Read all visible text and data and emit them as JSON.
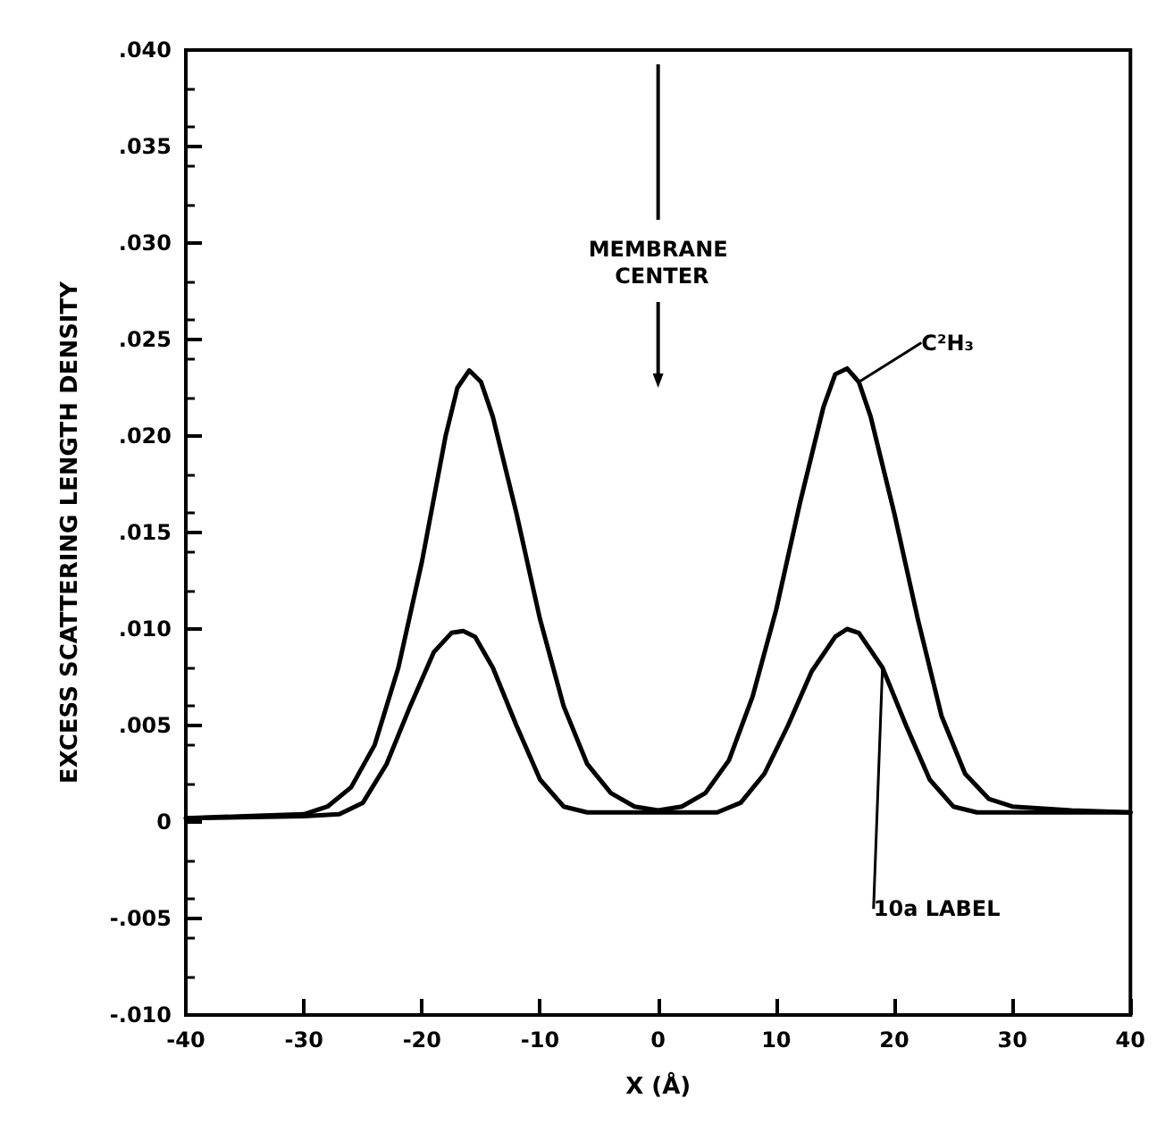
{
  "chart_data": {
    "type": "line",
    "xlabel": "X (Å)",
    "ylabel": "EXCESS SCATTERING LENGTH DENSITY",
    "xlim": [
      -40,
      40
    ],
    "xticks": [
      -40,
      -30,
      -20,
      -10,
      0,
      10,
      20,
      30,
      40
    ],
    "ylim": [
      -0.01,
      0.04
    ],
    "yticks": [
      {
        "value": -0.01,
        "label": "-.010"
      },
      {
        "value": -0.005,
        "label": "-.005"
      },
      {
        "value": 0,
        "label": "0"
      },
      {
        "value": 0.005,
        "label": ".005"
      },
      {
        "value": 0.01,
        "label": ".010"
      },
      {
        "value": 0.015,
        "label": ".015"
      },
      {
        "value": 0.02,
        "label": ".020"
      },
      {
        "value": 0.025,
        "label": ".025"
      },
      {
        "value": 0.03,
        "label": ".030"
      },
      {
        "value": 0.035,
        "label": ".035"
      },
      {
        "value": 0.04,
        "label": ".040"
      }
    ],
    "grid": false,
    "marker": "none",
    "line_style": "solid",
    "legend": false,
    "annotations": [
      "MEMBRANE CENTER"
    ],
    "series": [
      {
        "name": "C²H₃",
        "color": "#000000",
        "x": [
          -40,
          -35,
          -30,
          -28,
          -26,
          -24,
          -22,
          -20,
          -18,
          -17,
          -16,
          -15,
          -14,
          -12,
          -10,
          -8,
          -6,
          -4,
          -2,
          0,
          2,
          4,
          6,
          8,
          10,
          12,
          14,
          15,
          16,
          17,
          18,
          20,
          22,
          24,
          26,
          28,
          30,
          35,
          40
        ],
        "values": [
          0.0002,
          0.0003,
          0.0004,
          0.0008,
          0.0018,
          0.004,
          0.008,
          0.0135,
          0.02,
          0.0225,
          0.0234,
          0.0228,
          0.021,
          0.016,
          0.0105,
          0.006,
          0.003,
          0.0015,
          0.0008,
          0.0006,
          0.0008,
          0.0015,
          0.0032,
          0.0065,
          0.011,
          0.0165,
          0.0215,
          0.0232,
          0.0235,
          0.0228,
          0.021,
          0.016,
          0.0105,
          0.0055,
          0.0025,
          0.0012,
          0.0008,
          0.0006,
          0.0005
        ]
      },
      {
        "name": "10a LABEL",
        "color": "#000000",
        "x": [
          -40,
          -30,
          -27,
          -25,
          -23,
          -21,
          -19,
          -17.5,
          -16.5,
          -15.5,
          -14,
          -12,
          -10,
          -8,
          -6,
          0,
          5,
          7,
          9,
          11,
          13,
          15,
          16,
          17,
          19,
          21,
          23,
          25,
          27,
          40
        ],
        "values": [
          0.0002,
          0.0003,
          0.0004,
          0.001,
          0.003,
          0.006,
          0.0088,
          0.0098,
          0.0099,
          0.0096,
          0.008,
          0.005,
          0.0022,
          0.0008,
          0.0005,
          0.0005,
          0.0005,
          0.001,
          0.0025,
          0.005,
          0.0078,
          0.0096,
          0.01,
          0.0098,
          0.008,
          0.005,
          0.0022,
          0.0008,
          0.0005,
          0.0005
        ]
      }
    ]
  }
}
